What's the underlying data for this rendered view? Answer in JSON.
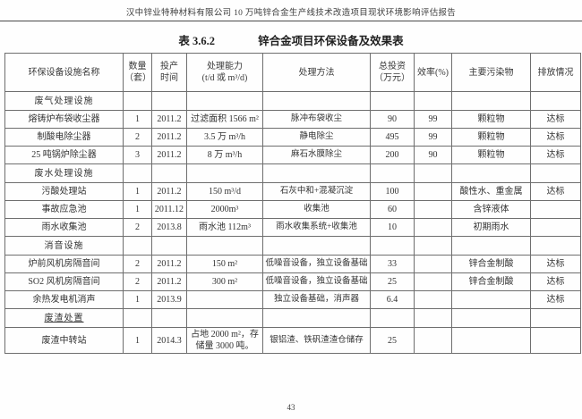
{
  "page": {
    "header_title": "汉中锌业特种材料有限公司 10 万吨锌合金生产线技术改造项目现状环境影响评估报告",
    "page_number": "43"
  },
  "table": {
    "caption_label": "表 3.6.2",
    "caption_title": "锌合金项目环保设备及效果表",
    "headers": [
      "环保设备设施名称",
      "数量\n（套）",
      "投产\n时间",
      "处理能力\n(t/d 或 m³/d)",
      "处理方法",
      "总投资\n（万元）",
      "效率(%)",
      "主要污染物",
      "排放情况"
    ],
    "sections": [
      {
        "title": "废气处理设施",
        "underline": false,
        "rows": [
          [
            "熔铸炉布袋收尘器",
            "1",
            "2011.2",
            "过滤面积 1566 m²",
            "脉冲布袋收尘",
            "90",
            "99",
            "颗粒物",
            "达标"
          ],
          [
            "制酸电除尘器",
            "2",
            "2011.2",
            "3.5 万 m³/h",
            "静电除尘",
            "495",
            "99",
            "颗粒物",
            "达标"
          ],
          [
            "25 吨锅炉除尘器",
            "3",
            "2011.2",
            "8 万 m³/h",
            "麻石水膜除尘",
            "200",
            "90",
            "颗粒物",
            "达标"
          ]
        ]
      },
      {
        "title": "废水处理设施",
        "underline": false,
        "rows": [
          [
            "污酸处理站",
            "1",
            "2011.2",
            "150 m³/d",
            "石灰中和+混凝沉淀",
            "100",
            "",
            "酸性水、重金属",
            "达标"
          ],
          [
            "事故应急池",
            "1",
            "2011.12",
            "2000m³",
            "收集池",
            "60",
            "",
            "含锌液体",
            ""
          ],
          [
            "雨水收集池",
            "2",
            "2013.8",
            "雨水池 112m³",
            "雨水收集系统+收集池",
            "10",
            "",
            "初期雨水",
            ""
          ]
        ]
      },
      {
        "title": "消音设施",
        "underline": false,
        "rows": [
          [
            "炉前风机房隔音间",
            "2",
            "2011.2",
            "150 m²",
            "低噪音设备，独立设备基础",
            "33",
            "",
            "锌合金制酸",
            "达标"
          ],
          [
            "SO2 风机房隔音间",
            "2",
            "2011.2",
            "300 m²",
            "低噪音设备，独立设备基础",
            "25",
            "",
            "锌合金制酸",
            "达标"
          ],
          [
            "余热发电机消声",
            "1",
            "2013.9",
            "",
            "独立设备基础，消声器",
            "6.4",
            "",
            "",
            "达标"
          ]
        ]
      },
      {
        "title": "废渣处置",
        "underline": true,
        "rows": [
          [
            "废渣中转站",
            "1",
            "2014.3",
            "占地 2000 m²，存储量 3000 吨。",
            "银铝渣、铁矾渣渣仓储存",
            "25",
            "",
            "",
            ""
          ]
        ]
      }
    ]
  }
}
